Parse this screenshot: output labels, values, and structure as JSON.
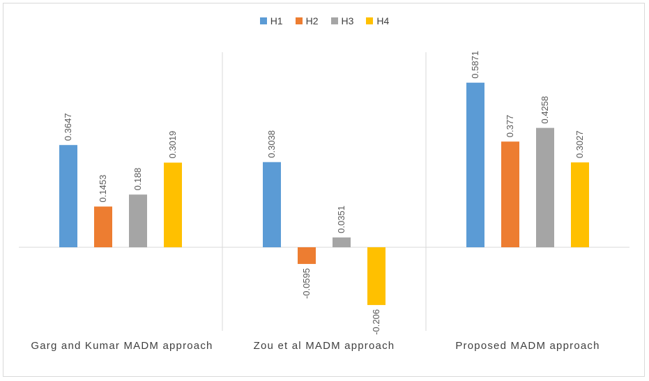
{
  "chart_data": {
    "type": "bar",
    "categories": [
      "Garg and Kumar MADM approach",
      "Zou et al MADM approach",
      "Proposed MADM approach"
    ],
    "series": [
      {
        "name": "H1",
        "color": "#5b9bd5",
        "values": [
          0.3647,
          0.3038,
          0.5871
        ],
        "labels": [
          "0.3647",
          "0.3038",
          "0.5871"
        ]
      },
      {
        "name": "H2",
        "color": "#ed7d31",
        "values": [
          0.1453,
          -0.0595,
          0.377
        ],
        "labels": [
          "0.1453",
          "-0.0595",
          "0.377"
        ]
      },
      {
        "name": "H3",
        "color": "#a5a5a5",
        "values": [
          0.188,
          0.0351,
          0.4258
        ],
        "labels": [
          "0.188",
          "0.0351",
          "0.4258"
        ]
      },
      {
        "name": "H4",
        "color": "#ffc000",
        "values": [
          0.3019,
          -0.206,
          0.3027
        ],
        "labels": [
          "0.3019",
          "-0.206",
          "0.3027"
        ]
      }
    ],
    "ylim": [
      -0.3,
      0.7
    ],
    "legend_position": "top-center",
    "grid": false
  }
}
